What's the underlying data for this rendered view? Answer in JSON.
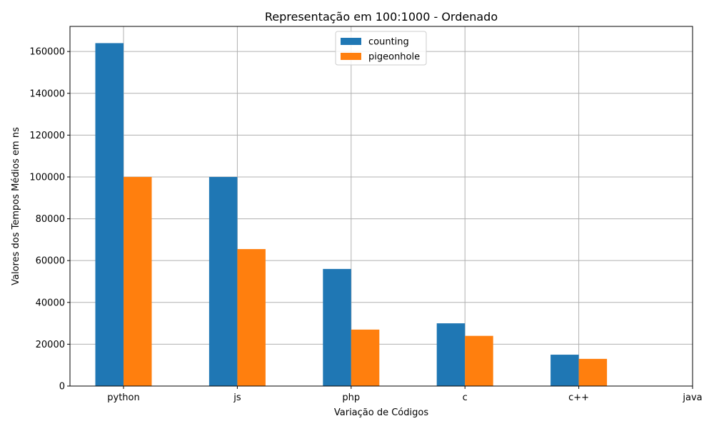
{
  "chart_data": {
    "type": "bar",
    "title": "Representação em 100:1000 - Ordenado",
    "xlabel": "Variação de Códigos",
    "ylabel": "Valores dos Tempos Médios em ns",
    "categories": [
      "python",
      "js",
      "php",
      "c",
      "c++",
      "java"
    ],
    "series": [
      {
        "name": "counting",
        "color": "#1f77b4",
        "values": [
          164000,
          100000,
          56000,
          30000,
          15000,
          0
        ]
      },
      {
        "name": "pigeonhole",
        "color": "#ff7f0e",
        "values": [
          100000,
          65500,
          27000,
          24000,
          13000,
          0
        ]
      }
    ],
    "ylim": [
      0,
      172000
    ],
    "yticks": [
      "0",
      "20000",
      "40000",
      "60000",
      "80000",
      "100000",
      "120000",
      "140000",
      "160000"
    ],
    "grid": true,
    "legend_position": "top-center"
  }
}
